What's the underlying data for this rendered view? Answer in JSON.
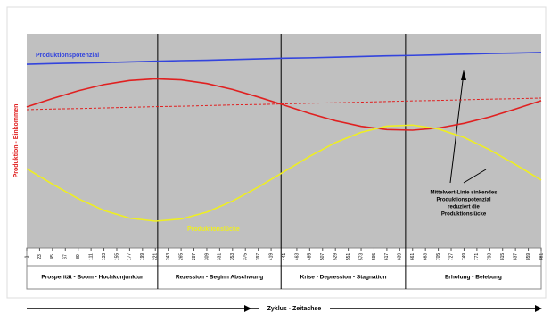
{
  "chart_data": {
    "type": "line",
    "y_label": "Produktion - Einkommen",
    "x_label": "Zyklus - Zeitachse",
    "xlim": [
      1,
      881
    ],
    "ylim": [
      0,
      100
    ],
    "xticks": [
      1,
      23,
      45,
      67,
      89,
      111,
      133,
      155,
      177,
      199,
      221,
      243,
      265,
      287,
      309,
      331,
      353,
      375,
      397,
      419,
      441,
      463,
      485,
      507,
      529,
      551,
      573,
      595,
      617,
      639,
      661,
      683,
      705,
      727,
      749,
      771,
      793,
      815,
      837,
      859,
      881
    ],
    "x": [
      1,
      45,
      89,
      133,
      177,
      221,
      265,
      309,
      353,
      397,
      441,
      485,
      529,
      573,
      617,
      661,
      705,
      749,
      793,
      837,
      881
    ],
    "series": [
      {
        "name": "Produktionspotenzial",
        "color": "#3344dd",
        "values": [
          85.8,
          86.1,
          86.4,
          86.6,
          86.9,
          87.2,
          87.5,
          87.7,
          88.0,
          88.3,
          88.6,
          88.8,
          89.1,
          89.4,
          89.7,
          89.9,
          90.2,
          90.5,
          90.8,
          91.0,
          91.3
        ]
      },
      {
        "color": "#e02020",
        "values": [
          65.9,
          69.8,
          73.4,
          76.3,
          78.2,
          79.0,
          78.5,
          76.8,
          74.0,
          70.5,
          66.7,
          62.8,
          59.4,
          56.8,
          55.3,
          55.0,
          56.0,
          58.2,
          61.2,
          64.9,
          68.8
        ]
      },
      {
        "color": "#e02020",
        "dashed": true,
        "values": [
          64.6,
          64.9,
          65.1,
          65.4,
          65.7,
          66.0,
          66.2,
          66.5,
          66.8,
          67.0,
          67.3,
          67.6,
          67.8,
          68.1,
          68.4,
          68.7,
          68.9,
          69.2,
          69.5,
          69.7,
          70.0
        ]
      },
      {
        "name": "Produktionslücke",
        "color": "#eeee22",
        "values": [
          37.0,
          29.8,
          23.0,
          17.5,
          13.9,
          12.5,
          13.5,
          16.7,
          21.9,
          28.4,
          35.6,
          42.8,
          49.2,
          54.0,
          56.9,
          57.4,
          55.6,
          51.6,
          45.8,
          39.0,
          31.7
        ]
      }
    ],
    "dividers": [
      225,
      436,
      649
    ],
    "phases": [
      "Prosperität - Boom - Hochkonjunktur",
      "Rezession - Beginn Abschwung",
      "Krise - Depression - Stagnation",
      "Erholung - Belebung"
    ],
    "annotation": [
      "Mittelwert-Linie sinkendes",
      "Produktionspotenzial",
      "reduziert die",
      "Produktionslücke"
    ]
  }
}
